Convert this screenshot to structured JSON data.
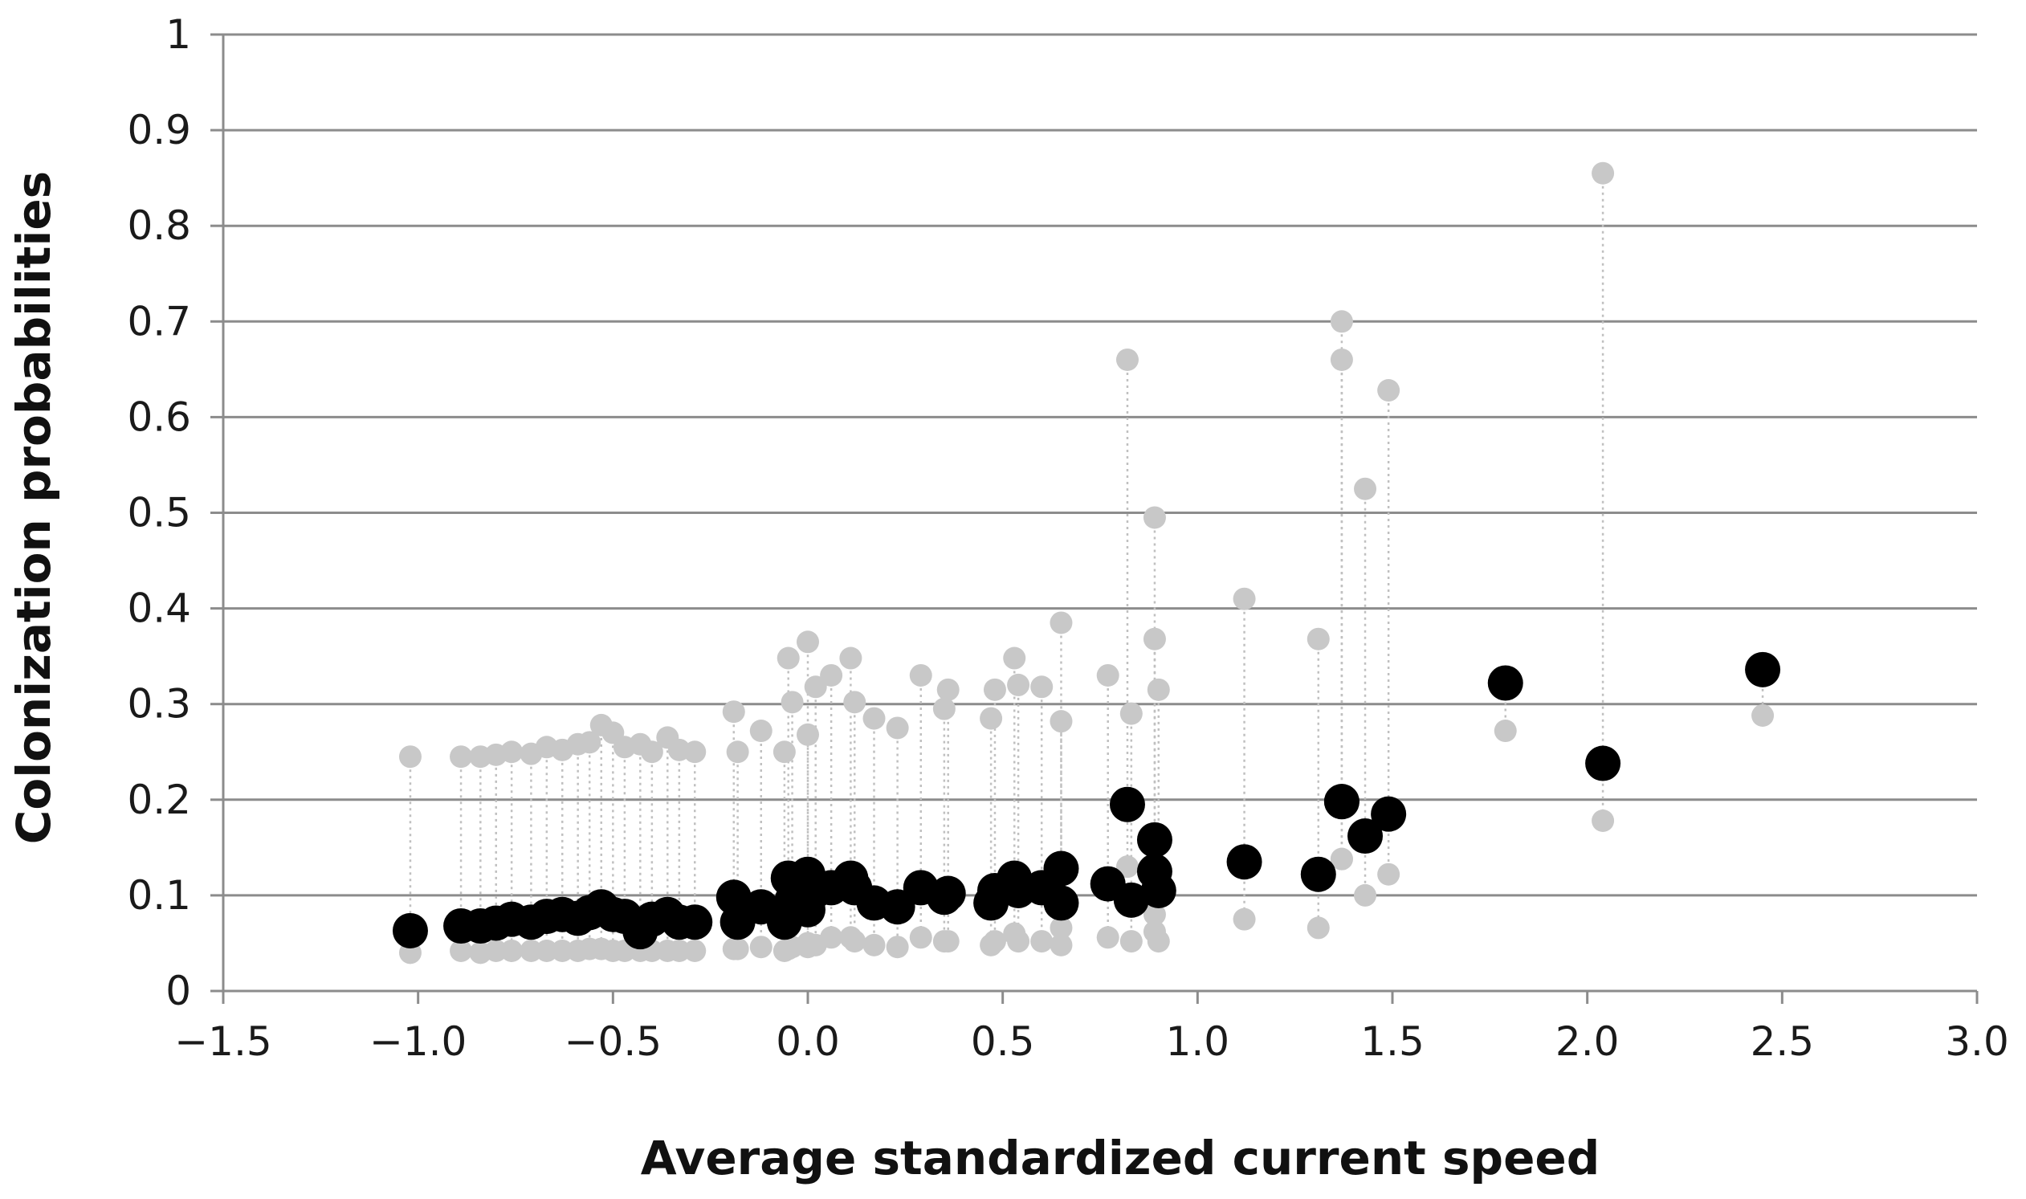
{
  "chart_data": {
    "type": "scatter",
    "xlabel": "Average standardized current speed",
    "ylabel": "Colonization probabilities",
    "xlim": [
      -1.5,
      3.0
    ],
    "ylim": [
      0,
      1
    ],
    "x_ticks": [
      "−1.5",
      "−1.0",
      "−0.5",
      "0.0",
      "0.5",
      "1.0",
      "1.5",
      "2.0",
      "2.5",
      "3.0"
    ],
    "x_tick_values": [
      -1.5,
      -1.0,
      -0.5,
      0.0,
      0.5,
      1.0,
      1.5,
      2.0,
      2.5,
      3.0
    ],
    "y_ticks": [
      "0",
      "0.1",
      "0.2",
      "0.3",
      "0.4",
      "0.5",
      "0.6",
      "0.7",
      "0.8",
      "0.9",
      "1"
    ],
    "y_tick_values": [
      0,
      0.1,
      0.2,
      0.3,
      0.4,
      0.5,
      0.6,
      0.7,
      0.8,
      0.9,
      1.0
    ],
    "grid": "horizontal",
    "legend": "none",
    "colors": {
      "mean": "#000000",
      "bounds": "#c8c8c8",
      "connector": "#c0c0c0",
      "grid": "#8c8c8c"
    },
    "points": [
      {
        "x": -1.02,
        "mean": 0.063,
        "low": 0.04,
        "high": 0.245
      },
      {
        "x": -0.89,
        "mean": 0.068,
        "low": 0.042,
        "high": 0.245
      },
      {
        "x": -0.84,
        "mean": 0.068,
        "low": 0.04,
        "high": 0.245
      },
      {
        "x": -0.8,
        "mean": 0.071,
        "low": 0.042,
        "high": 0.247
      },
      {
        "x": -0.76,
        "mean": 0.075,
        "low": 0.042,
        "high": 0.25
      },
      {
        "x": -0.71,
        "mean": 0.072,
        "low": 0.042,
        "high": 0.248
      },
      {
        "x": -0.67,
        "mean": 0.078,
        "low": 0.042,
        "high": 0.255
      },
      {
        "x": -0.63,
        "mean": 0.08,
        "low": 0.042,
        "high": 0.252
      },
      {
        "x": -0.59,
        "mean": 0.076,
        "low": 0.042,
        "high": 0.258
      },
      {
        "x": -0.56,
        "mean": 0.082,
        "low": 0.044,
        "high": 0.26
      },
      {
        "x": -0.53,
        "mean": 0.088,
        "low": 0.044,
        "high": 0.278
      },
      {
        "x": -0.5,
        "mean": 0.08,
        "low": 0.042,
        "high": 0.27
      },
      {
        "x": -0.47,
        "mean": 0.078,
        "low": 0.042,
        "high": 0.255
      },
      {
        "x": -0.43,
        "mean": 0.062,
        "low": 0.042,
        "high": 0.258
      },
      {
        "x": -0.4,
        "mean": 0.075,
        "low": 0.042,
        "high": 0.25
      },
      {
        "x": -0.36,
        "mean": 0.08,
        "low": 0.042,
        "high": 0.265
      },
      {
        "x": -0.33,
        "mean": 0.072,
        "low": 0.042,
        "high": 0.252
      },
      {
        "x": -0.29,
        "mean": 0.072,
        "low": 0.042,
        "high": 0.25
      },
      {
        "x": -0.19,
        "mean": 0.098,
        "low": 0.044,
        "high": 0.292
      },
      {
        "x": -0.18,
        "mean": 0.072,
        "low": 0.044,
        "high": 0.25
      },
      {
        "x": -0.12,
        "mean": 0.088,
        "low": 0.046,
        "high": 0.272
      },
      {
        "x": -0.06,
        "mean": 0.072,
        "low": 0.042,
        "high": 0.25
      },
      {
        "x": -0.05,
        "mean": 0.118,
        "low": 0.044,
        "high": 0.348
      },
      {
        "x": -0.04,
        "mean": 0.095,
        "low": 0.046,
        "high": 0.302
      },
      {
        "x": 0.0,
        "mean": 0.122,
        "low": 0.05,
        "high": 0.365
      },
      {
        "x": 0.0,
        "mean": 0.085,
        "low": 0.046,
        "high": 0.268
      },
      {
        "x": 0.02,
        "mean": 0.105,
        "low": 0.048,
        "high": 0.318
      },
      {
        "x": 0.06,
        "mean": 0.108,
        "low": 0.056,
        "high": 0.33
      },
      {
        "x": 0.11,
        "mean": 0.118,
        "low": 0.056,
        "high": 0.348
      },
      {
        "x": 0.12,
        "mean": 0.108,
        "low": 0.052,
        "high": 0.302
      },
      {
        "x": 0.17,
        "mean": 0.092,
        "low": 0.048,
        "high": 0.285
      },
      {
        "x": 0.23,
        "mean": 0.088,
        "low": 0.046,
        "high": 0.275
      },
      {
        "x": 0.29,
        "mean": 0.108,
        "low": 0.056,
        "high": 0.33
      },
      {
        "x": 0.35,
        "mean": 0.098,
        "low": 0.052,
        "high": 0.295
      },
      {
        "x": 0.36,
        "mean": 0.102,
        "low": 0.052,
        "high": 0.315
      },
      {
        "x": 0.47,
        "mean": 0.092,
        "low": 0.048,
        "high": 0.285
      },
      {
        "x": 0.48,
        "mean": 0.105,
        "low": 0.052,
        "high": 0.315
      },
      {
        "x": 0.53,
        "mean": 0.118,
        "low": 0.06,
        "high": 0.348
      },
      {
        "x": 0.54,
        "mean": 0.105,
        "low": 0.052,
        "high": 0.32
      },
      {
        "x": 0.6,
        "mean": 0.108,
        "low": 0.052,
        "high": 0.318
      },
      {
        "x": 0.65,
        "mean": 0.128,
        "low": 0.066,
        "high": 0.385
      },
      {
        "x": 0.65,
        "mean": 0.092,
        "low": 0.048,
        "high": 0.282
      },
      {
        "x": 0.77,
        "mean": 0.112,
        "low": 0.056,
        "high": 0.33
      },
      {
        "x": 0.82,
        "mean": 0.195,
        "low": 0.13,
        "high": 0.66
      },
      {
        "x": 0.83,
        "mean": 0.095,
        "low": 0.052,
        "high": 0.29
      },
      {
        "x": 0.89,
        "mean": 0.158,
        "low": 0.08,
        "high": 0.495
      },
      {
        "x": 0.89,
        "mean": 0.125,
        "low": 0.062,
        "high": 0.368
      },
      {
        "x": 0.9,
        "mean": 0.105,
        "low": 0.052,
        "high": 0.315
      },
      {
        "x": 1.12,
        "mean": 0.135,
        "low": 0.075,
        "high": 0.41
      },
      {
        "x": 1.31,
        "mean": 0.122,
        "low": 0.066,
        "high": 0.368
      },
      {
        "x": 1.37,
        "mean": 0.198,
        "low": 0.138,
        "high": 0.7
      },
      {
        "x": 1.37,
        "mean": 0.198,
        "low": 0.138,
        "high": 0.66
      },
      {
        "x": 1.43,
        "mean": 0.162,
        "low": 0.1,
        "high": 0.525
      },
      {
        "x": 1.49,
        "mean": 0.185,
        "low": 0.122,
        "high": 0.628
      },
      {
        "x": 1.79,
        "mean": 0.322,
        "low": 0.272,
        "high": 0.322
      },
      {
        "x": 2.04,
        "mean": 0.238,
        "low": 0.178,
        "high": 0.855
      },
      {
        "x": 2.45,
        "mean": 0.336,
        "low": 0.288,
        "high": 0.336
      }
    ]
  }
}
